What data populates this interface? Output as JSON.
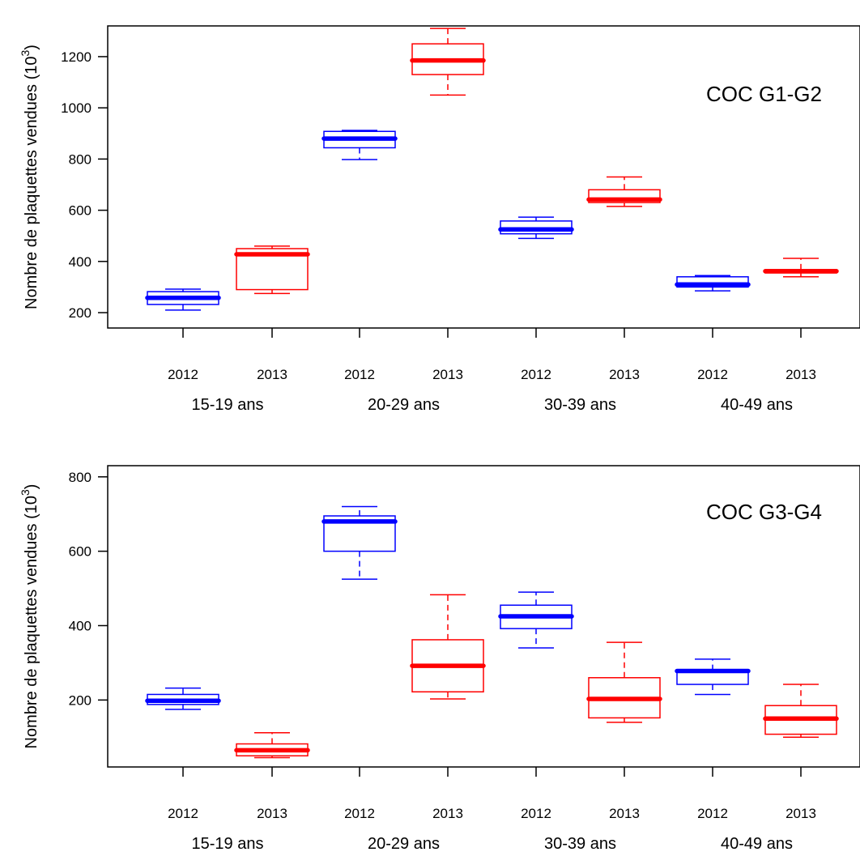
{
  "colors": {
    "2012": "#0000ff",
    "2013": "#ff0000",
    "axis": "#000000"
  },
  "chart_data": [
    {
      "type": "box",
      "panel_label": "COC G1-G2",
      "ylabel": "Nombre de plaquettes vendues",
      "ylabel_unit_base": "(10",
      "ylabel_unit_exp": "3",
      "ylabel_unit_close": ")",
      "ylim": [
        140,
        1320
      ],
      "yticks": [
        200,
        400,
        600,
        800,
        1000,
        1200
      ],
      "grid": false,
      "groups": [
        "15-19 ans",
        "20-29 ans",
        "30-39 ans",
        "40-49 ans"
      ],
      "boxes": [
        {
          "label": "2012",
          "group": "15-19 ans",
          "min": 210,
          "q1": 232,
          "median": 258,
          "q3": 282,
          "max": 292
        },
        {
          "label": "2013",
          "group": "15-19 ans",
          "min": 275,
          "q1": 290,
          "median": 428,
          "q3": 450,
          "max": 460
        },
        {
          "label": "2012",
          "group": "20-29 ans",
          "min": 798,
          "q1": 844,
          "median": 880,
          "q3": 908,
          "max": 912
        },
        {
          "label": "2013",
          "group": "20-29 ans",
          "min": 1050,
          "q1": 1130,
          "median": 1185,
          "q3": 1250,
          "max": 1310
        },
        {
          "label": "2012",
          "group": "30-39 ans",
          "min": 490,
          "q1": 508,
          "median": 525,
          "q3": 558,
          "max": 573
        },
        {
          "label": "2013",
          "group": "30-39 ans",
          "min": 615,
          "q1": 630,
          "median": 642,
          "q3": 680,
          "max": 730
        },
        {
          "label": "2012",
          "group": "40-49 ans",
          "min": 285,
          "q1": 300,
          "median": 310,
          "q3": 340,
          "max": 345
        },
        {
          "label": "2013",
          "group": "40-49 ans",
          "min": 340,
          "q1": 355,
          "median": 362,
          "q3": 368,
          "max": 412
        }
      ]
    },
    {
      "type": "box",
      "panel_label": "COC G3-G4",
      "ylabel": "Nombre de plaquettes vendues",
      "ylabel_unit_base": "(10",
      "ylabel_unit_exp": "3",
      "ylabel_unit_close": ")",
      "ylim": [
        20,
        830
      ],
      "yticks": [
        200,
        400,
        600,
        800
      ],
      "grid": false,
      "groups": [
        "15-19 ans",
        "20-29 ans",
        "30-39 ans",
        "40-49 ans"
      ],
      "boxes": [
        {
          "label": "2012",
          "group": "15-19 ans",
          "min": 175,
          "q1": 188,
          "median": 198,
          "q3": 215,
          "max": 232
        },
        {
          "label": "2013",
          "group": "15-19 ans",
          "min": 45,
          "q1": 50,
          "median": 65,
          "q3": 82,
          "max": 112
        },
        {
          "label": "2012",
          "group": "20-29 ans",
          "min": 525,
          "q1": 600,
          "median": 680,
          "q3": 695,
          "max": 720
        },
        {
          "label": "2013",
          "group": "20-29 ans",
          "min": 203,
          "q1": 222,
          "median": 292,
          "q3": 362,
          "max": 483
        },
        {
          "label": "2012",
          "group": "30-39 ans",
          "min": 340,
          "q1": 392,
          "median": 425,
          "q3": 455,
          "max": 490
        },
        {
          "label": "2013",
          "group": "30-39 ans",
          "min": 140,
          "q1": 152,
          "median": 203,
          "q3": 260,
          "max": 355
        },
        {
          "label": "2012",
          "group": "40-49 ans",
          "min": 215,
          "q1": 242,
          "median": 278,
          "q3": 280,
          "max": 310
        },
        {
          "label": "2013",
          "group": "40-49 ans",
          "min": 100,
          "q1": 108,
          "median": 150,
          "q3": 185,
          "max": 242
        }
      ]
    }
  ]
}
